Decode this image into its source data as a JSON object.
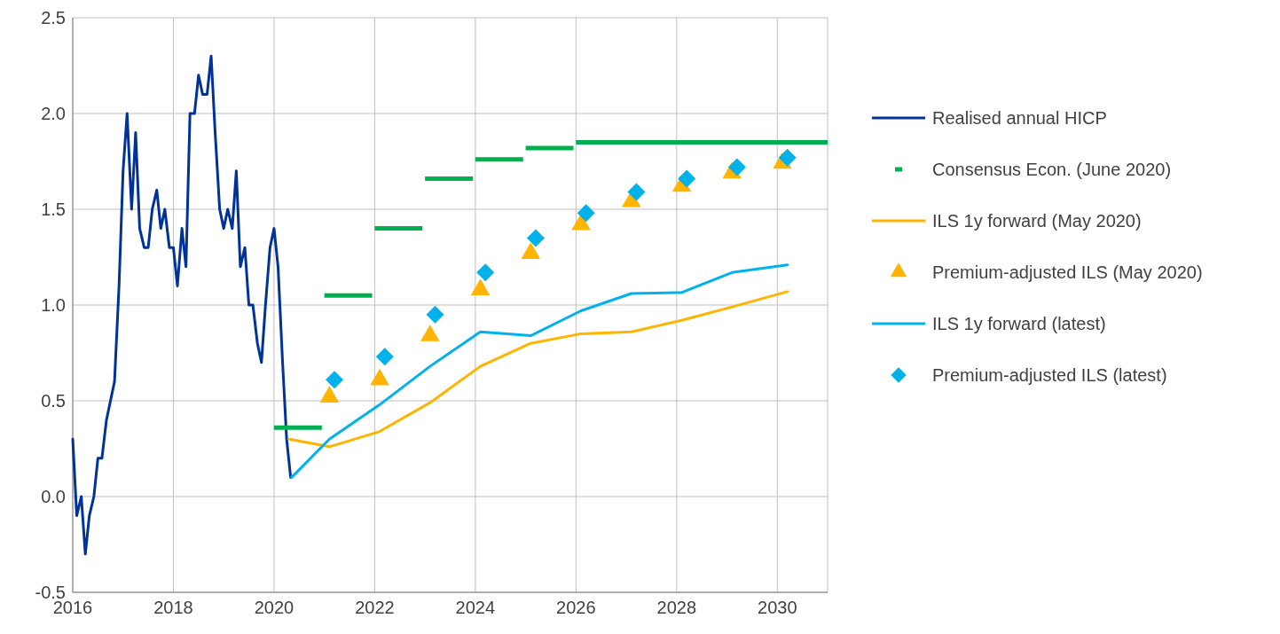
{
  "chart_data": {
    "type": "line",
    "xlim": [
      2016,
      2031
    ],
    "xticks": [
      2016,
      2018,
      2020,
      2022,
      2024,
      2026,
      2028,
      2030
    ],
    "ylim": [
      -0.5,
      2.5
    ],
    "yticks": [
      {
        "value": -0.5,
        "label": "-0.5"
      },
      {
        "value": 0,
        "label": "0.0"
      },
      {
        "value": 0.5,
        "label": "0.5"
      },
      {
        "value": 1,
        "label": "1.0"
      },
      {
        "value": 1.5,
        "label": "1.5"
      },
      {
        "value": 2,
        "label": "2.0"
      },
      {
        "value": 2.5,
        "label": "2.5"
      }
    ],
    "grid": true,
    "legend": "right",
    "series": [
      {
        "name": "Realised annual HICP",
        "color": "#003299",
        "x": [
          2016,
          2016.08,
          2016.17,
          2016.25,
          2016.33,
          2016.42,
          2016.5,
          2016.58,
          2016.67,
          2016.75,
          2016.83,
          2016.92,
          2017,
          2017.08,
          2017.17,
          2017.25,
          2017.33,
          2017.42,
          2017.5,
          2017.58,
          2017.67,
          2017.75,
          2017.83,
          2017.92,
          2018,
          2018.08,
          2018.17,
          2018.25,
          2018.33,
          2018.42,
          2018.5,
          2018.58,
          2018.67,
          2018.75,
          2018.83,
          2018.92,
          2019,
          2019.08,
          2019.17,
          2019.25,
          2019.33,
          2019.42,
          2019.5,
          2019.58,
          2019.67,
          2019.75,
          2019.83,
          2019.92,
          2020,
          2020.08,
          2020.17,
          2020.25,
          2020.33
        ],
        "values": [
          0.3,
          -0.1,
          0.0,
          -0.3,
          -0.1,
          0.0,
          0.2,
          0.2,
          0.4,
          0.5,
          0.6,
          1.1,
          1.7,
          2.0,
          1.5,
          1.9,
          1.4,
          1.3,
          1.3,
          1.5,
          1.6,
          1.4,
          1.5,
          1.3,
          1.3,
          1.1,
          1.4,
          1.2,
          2.0,
          2.0,
          2.2,
          2.1,
          2.1,
          2.3,
          1.9,
          1.5,
          1.4,
          1.5,
          1.4,
          1.7,
          1.2,
          1.3,
          1.0,
          1.0,
          0.8,
          0.7,
          1.0,
          1.3,
          1.4,
          1.2,
          0.7,
          0.3,
          0.1
        ]
      },
      {
        "name": "Consensus Econ. (June 2020)",
        "type": "step",
        "color": "#00b050",
        "x": [
          2020,
          2020.95,
          2020.97,
          2021,
          2021.95,
          2021.97,
          2022,
          2022.95,
          2022.97,
          2023,
          2023.95,
          2023.97,
          2024,
          2024.95,
          2024.97,
          2025,
          2025.95,
          2025.97,
          2026,
          2031
        ],
        "values": [
          0.36,
          0.36,
          null,
          1.05,
          1.05,
          null,
          1.4,
          1.4,
          null,
          1.66,
          1.66,
          null,
          1.76,
          1.76,
          null,
          1.82,
          1.82,
          null,
          1.85,
          1.85
        ]
      },
      {
        "name": "ILS 1y forward (May 2020)",
        "color": "#ffb400",
        "x": [
          2020.3,
          2021.1,
          2022.1,
          2023.1,
          2024.1,
          2025.1,
          2026.1,
          2027.1,
          2028.1,
          2029.1,
          2030.2
        ],
        "values": [
          0.3,
          0.26,
          0.34,
          0.49,
          0.68,
          0.8,
          0.85,
          0.86,
          0.92,
          0.99,
          1.07
        ]
      },
      {
        "name": "Premium-adjusted ILS (May 2020)",
        "type": "scatter",
        "marker": "triangle",
        "color": "#ffb400",
        "x": [
          2021.1,
          2022.1,
          2023.1,
          2024.1,
          2025.1,
          2026.1,
          2027.1,
          2028.1,
          2029.1,
          2030.1
        ],
        "values": [
          0.52,
          0.61,
          0.84,
          1.08,
          1.27,
          1.42,
          1.54,
          1.62,
          1.69,
          1.74
        ]
      },
      {
        "name": "ILS 1y forward (latest)",
        "color": "#00b1ea",
        "x": [
          2020.35,
          2021.1,
          2022.1,
          2023.1,
          2024.1,
          2025.1,
          2026.1,
          2027.1,
          2028.1,
          2029.1,
          2030.2
        ],
        "values": [
          0.1,
          0.3,
          0.48,
          0.68,
          0.86,
          0.84,
          0.97,
          1.06,
          1.065,
          1.17,
          1.21
        ]
      },
      {
        "name": "Premium-adjusted ILS (latest)",
        "type": "scatter",
        "marker": "diamond",
        "color": "#00b1ea",
        "x": [
          2021.2,
          2022.2,
          2023.2,
          2024.2,
          2025.2,
          2026.2,
          2027.2,
          2028.2,
          2029.2,
          2030.2
        ],
        "values": [
          0.61,
          0.73,
          0.95,
          1.17,
          1.35,
          1.48,
          1.59,
          1.66,
          1.72,
          1.77
        ]
      }
    ]
  }
}
